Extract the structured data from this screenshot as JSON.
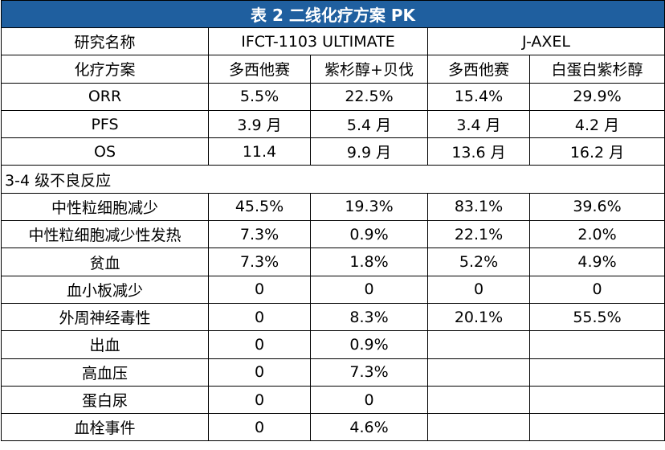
{
  "title": "表 2  二线化疗方案 PK",
  "header": {
    "study_label": "研究名称",
    "study_1": "IFCT-1103 ULTIMATE",
    "study_2": "J-AXEL",
    "regimen_label": "化疗方案",
    "regimens": [
      "多西他赛",
      "紫杉醇+贝伐",
      "多西他赛",
      "白蛋白紫杉醇"
    ]
  },
  "efficacy": [
    {
      "label": "ORR",
      "values": [
        "5.5%",
        "22.5%",
        "15.4%",
        "29.9%"
      ]
    },
    {
      "label": "PFS",
      "values": [
        "3.9 月",
        "5.4 月",
        "3.4 月",
        "4.2 月"
      ]
    },
    {
      "label": "OS",
      "values": [
        "11.4",
        "9.9 月",
        "13.6 月",
        "16.2 月"
      ]
    }
  ],
  "ae_section_label": "3-4 级不良反应",
  "adverse_events": [
    {
      "label": "中性粒细胞减少",
      "values": [
        "45.5%",
        "19.3%",
        "83.1%",
        "39.6%"
      ]
    },
    {
      "label": "中性粒细胞减少性发热",
      "values": [
        "7.3%",
        "0.9%",
        "22.1%",
        "2.0%"
      ]
    },
    {
      "label": "贫血",
      "values": [
        "7.3%",
        "1.8%",
        "5.2%",
        "4.9%"
      ]
    },
    {
      "label": "血小板减少",
      "values": [
        "0",
        "0",
        "0",
        "0"
      ]
    },
    {
      "label": "外周神经毒性",
      "values": [
        "0",
        "8.3%",
        "20.1%",
        "55.5%"
      ]
    },
    {
      "label": "出血",
      "values": [
        "0",
        "0.9%",
        "",
        ""
      ]
    },
    {
      "label": "高血压",
      "values": [
        "0",
        "7.3%",
        "",
        ""
      ]
    },
    {
      "label": "蛋白尿",
      "values": [
        "0",
        "0",
        "",
        ""
      ]
    },
    {
      "label": "血栓事件",
      "values": [
        "0",
        "4.6%",
        "",
        ""
      ]
    }
  ]
}
